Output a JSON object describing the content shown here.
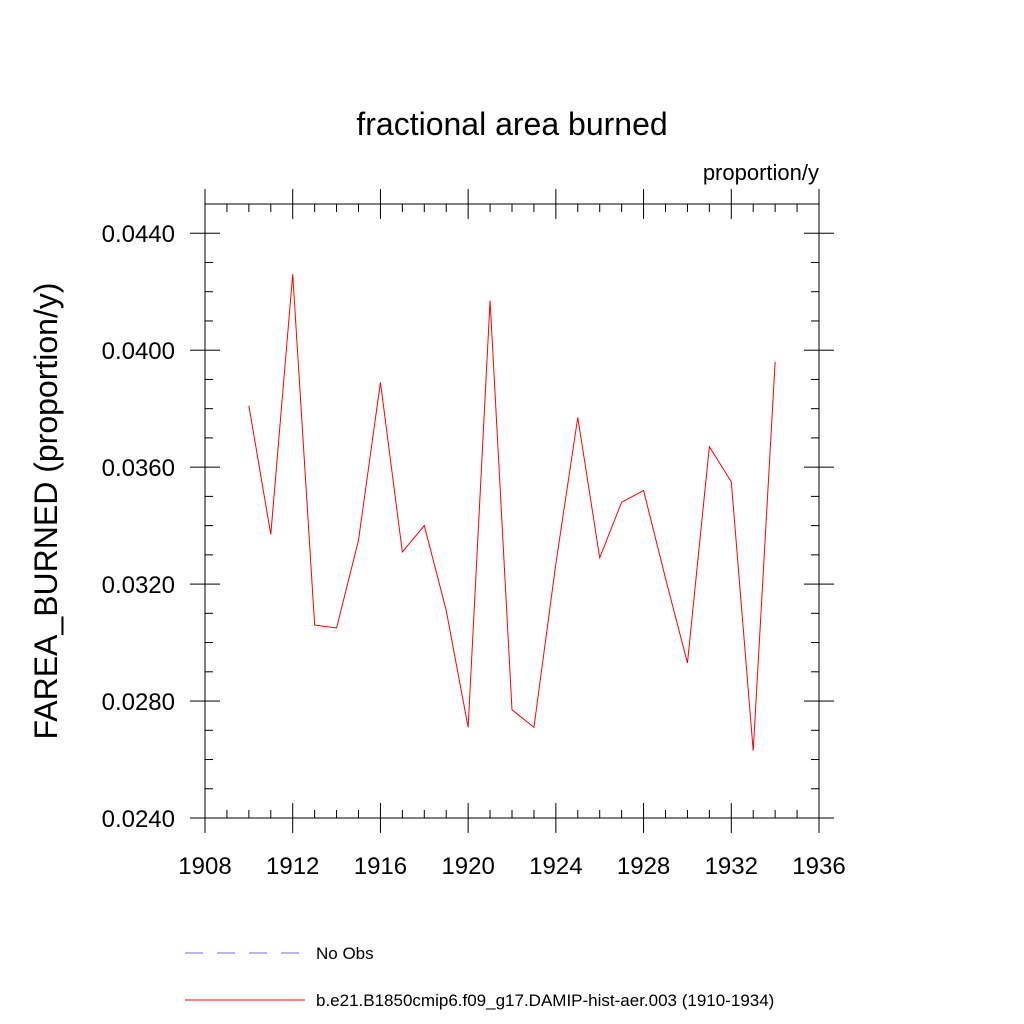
{
  "chart_data": {
    "type": "line",
    "title": "fractional area burned",
    "units": "proportion/y",
    "xlabel": "",
    "ylabel": "FAREA_BURNED  (proportion/y)",
    "xlim": [
      1908,
      1936
    ],
    "ylim": [
      0.024,
      0.045
    ],
    "x_ticks": [
      1908,
      1912,
      1916,
      1920,
      1924,
      1928,
      1932,
      1936
    ],
    "x_tick_labels": [
      "1908",
      "1912",
      "1916",
      "1920",
      "1924",
      "1928",
      "1932",
      "1936"
    ],
    "y_ticks": [
      0.024,
      0.028,
      0.032,
      0.036,
      0.04,
      0.044
    ],
    "y_tick_labels": [
      "0.0240",
      "0.0280",
      "0.0320",
      "0.0360",
      "0.0400",
      "0.0440"
    ],
    "grid": false,
    "legend_position": "bottom",
    "series": [
      {
        "name": "b.e21.B1850cmip6.f09_g17.DAMIP-hist-aer.003 (1910-1934)",
        "color": "#ff0000",
        "style": "solid",
        "x": [
          1910,
          1911,
          1912,
          1913,
          1914,
          1915,
          1916,
          1917,
          1918,
          1919,
          1920,
          1921,
          1922,
          1923,
          1924,
          1925,
          1926,
          1927,
          1928,
          1929,
          1930,
          1931,
          1932,
          1933,
          1934
        ],
        "values": [
          0.0381,
          0.0337,
          0.0426,
          0.0306,
          0.0305,
          0.0335,
          0.0389,
          0.0331,
          0.034,
          0.0311,
          0.0271,
          0.0417,
          0.0277,
          0.0271,
          0.0327,
          0.0377,
          0.0329,
          0.0348,
          0.0352,
          0.0322,
          0.0293,
          0.0367,
          0.0355,
          0.0263,
          0.0396
        ]
      }
    ],
    "legend": [
      {
        "label": "No Obs",
        "color": "#6a6aff",
        "style": "dashed"
      },
      {
        "label": "b.e21.B1850cmip6.f09_g17.DAMIP-hist-aer.003 (1910-1934)",
        "color": "#ff0000",
        "style": "solid"
      }
    ]
  }
}
